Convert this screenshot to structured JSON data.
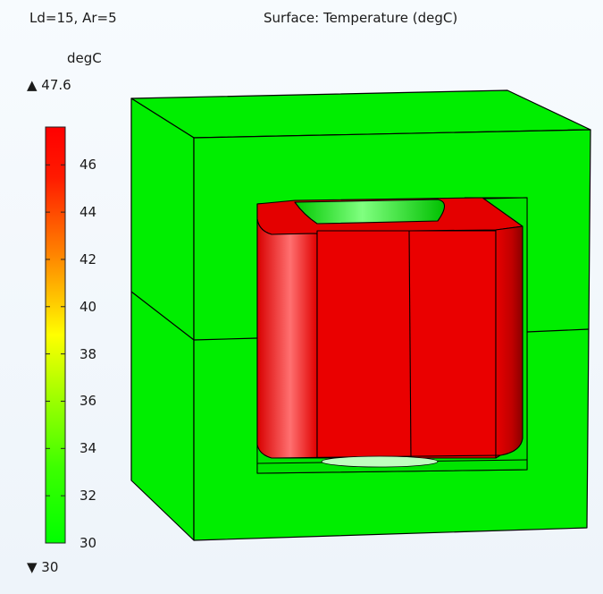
{
  "header": {
    "parameters": "Ld=15, Ar=5",
    "plot_title": "Surface: Temperature (degC)"
  },
  "colorbar": {
    "unit": "degC",
    "max_marker": "▲ 47.6",
    "min_marker": "▼ 30",
    "max_value": 47.6,
    "min_value": 30,
    "ticks": [
      "46",
      "44",
      "42",
      "40",
      "38",
      "36",
      "34",
      "32",
      "30"
    ],
    "tick_values": [
      46,
      44,
      42,
      40,
      38,
      36,
      34,
      32,
      30
    ],
    "colormap_stops": [
      "#ff0000",
      "#ff4400",
      "#ff8800",
      "#ffbb00",
      "#ffff00",
      "#aaff00",
      "#55ff00",
      "#00ff00"
    ]
  },
  "colors": {
    "core": "#00ee00",
    "core_edge": "#000000",
    "winding": "#ee0000",
    "winding_dark": "#b80000",
    "winding_light": "#ff5555"
  }
}
